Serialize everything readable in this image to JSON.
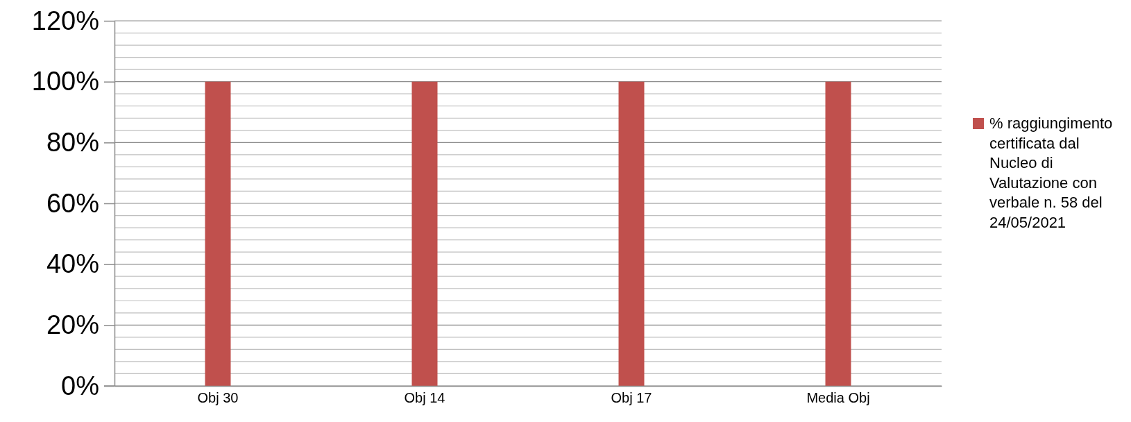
{
  "chart_data": {
    "type": "bar",
    "categories": [
      "Obj 30",
      "Obj 14",
      "Obj 17",
      "Media Obj"
    ],
    "series": [
      {
        "name": "% raggiungimento certificata dal Nucleo di Valutazione con verbale n. 58 del 24/05/2021",
        "color": "#c0504d",
        "values": [
          100,
          100,
          100,
          100
        ]
      }
    ],
    "ylim": [
      0,
      120
    ],
    "yticks": [
      {
        "value": 0,
        "label": "0%"
      },
      {
        "value": 4,
        "label": null
      },
      {
        "value": 8,
        "label": null
      },
      {
        "value": 12,
        "label": null
      },
      {
        "value": 16,
        "label": null
      },
      {
        "value": 20,
        "label": "20%"
      },
      {
        "value": 24,
        "label": null
      },
      {
        "value": 28,
        "label": null
      },
      {
        "value": 32,
        "label": null
      },
      {
        "value": 36,
        "label": null
      },
      {
        "value": 40,
        "label": "40%"
      },
      {
        "value": 44,
        "label": null
      },
      {
        "value": 48,
        "label": null
      },
      {
        "value": 52,
        "label": null
      },
      {
        "value": 56,
        "label": null
      },
      {
        "value": 60,
        "label": "60%"
      },
      {
        "value": 64,
        "label": null
      },
      {
        "value": 68,
        "label": null
      },
      {
        "value": 72,
        "label": null
      },
      {
        "value": 76,
        "label": null
      },
      {
        "value": 80,
        "label": "80%"
      },
      {
        "value": 84,
        "label": null
      },
      {
        "value": 88,
        "label": null
      },
      {
        "value": 92,
        "label": null
      },
      {
        "value": 96,
        "label": null
      },
      {
        "value": 100,
        "label": "100%"
      },
      {
        "value": 104,
        "label": null
      },
      {
        "value": 108,
        "label": null
      },
      {
        "value": 112,
        "label": null
      },
      {
        "value": 116,
        "label": null
      },
      {
        "value": 120,
        "label": "120%"
      }
    ],
    "grid": true,
    "legend": "right"
  }
}
